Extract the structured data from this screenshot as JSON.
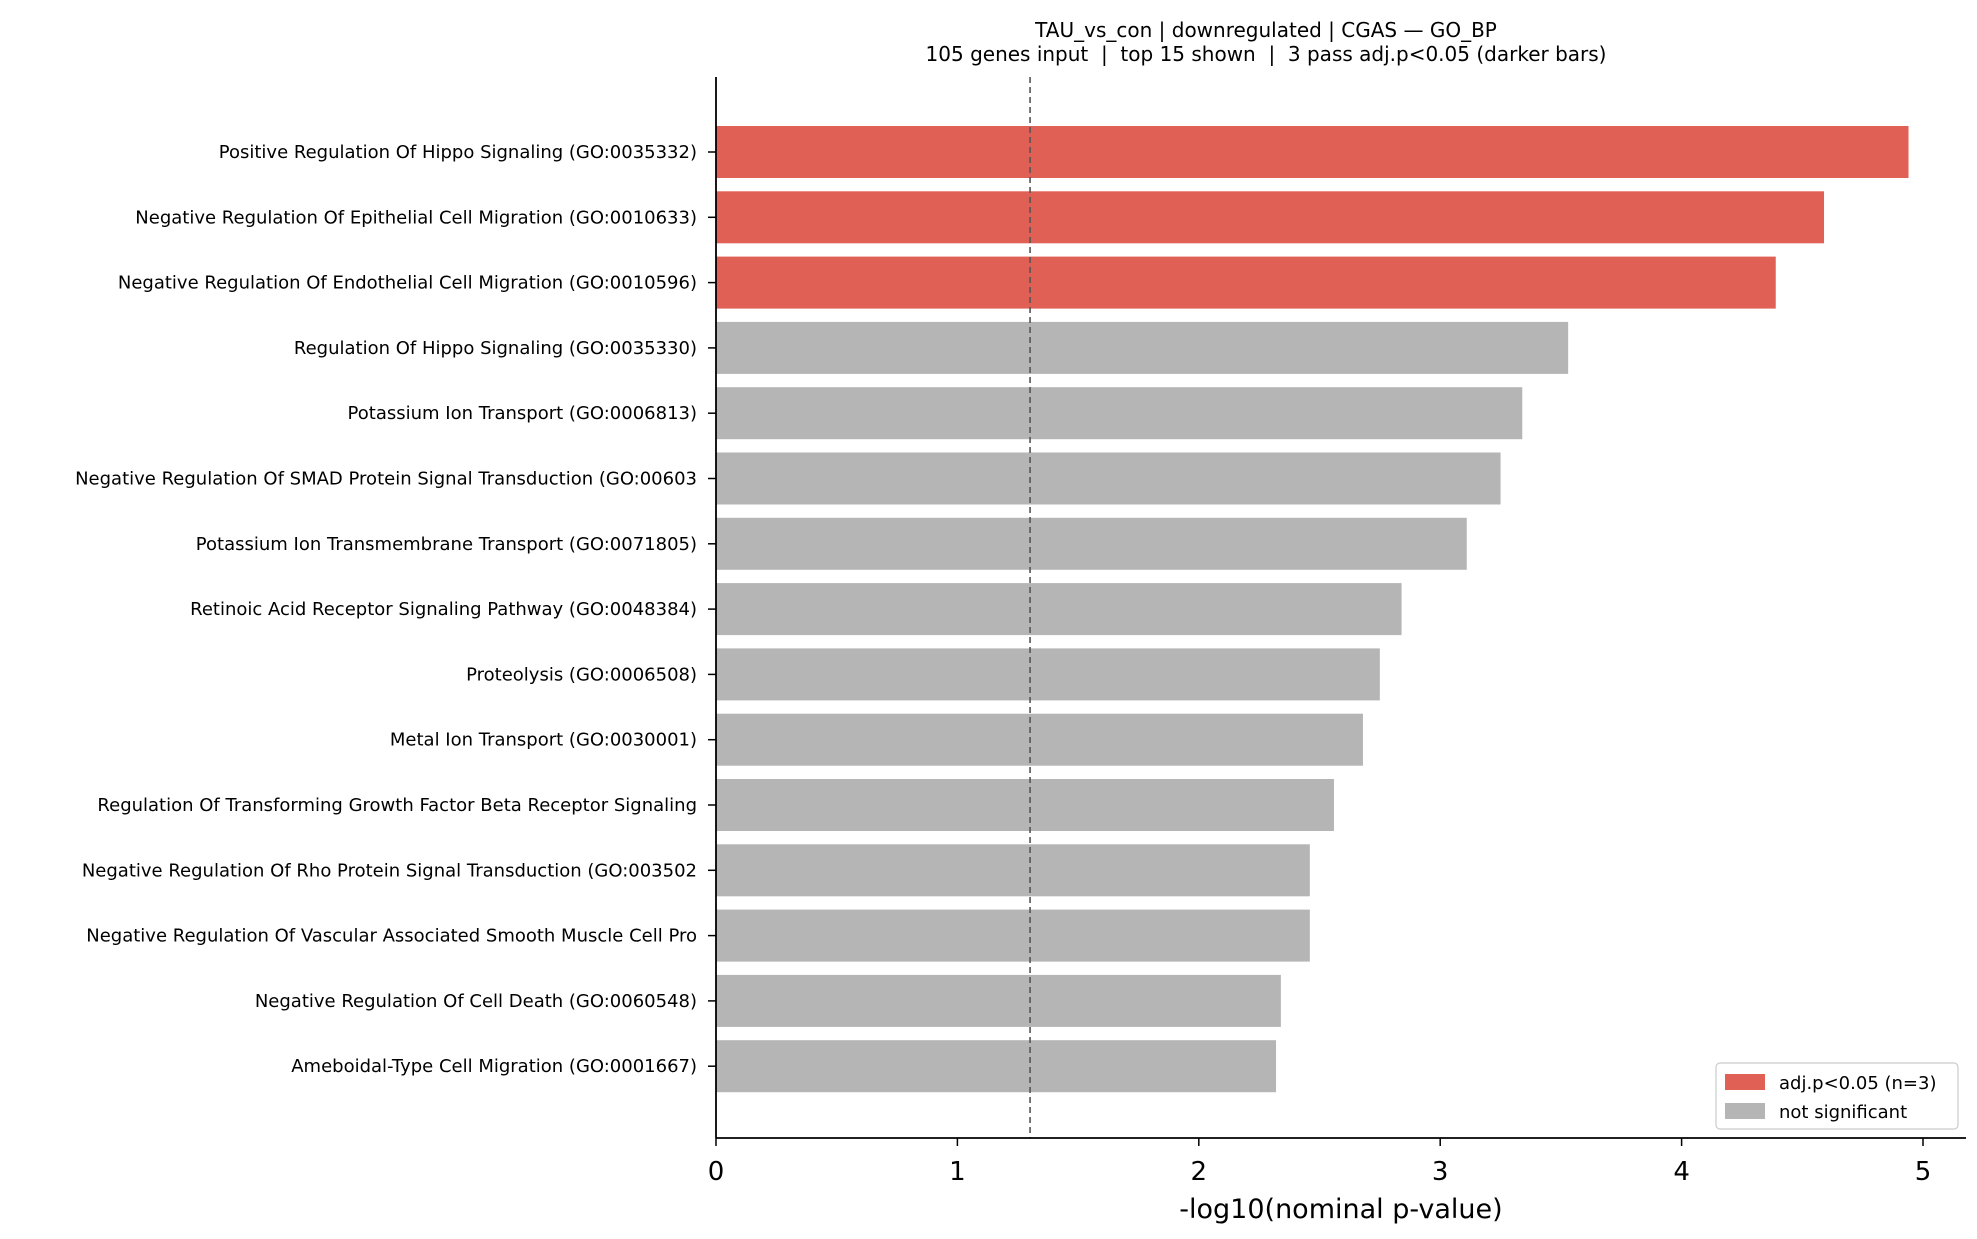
{
  "chart_data": {
    "type": "bar",
    "orientation": "horizontal",
    "title": "TAU_vs_con | downregulated | CGAS — GO_BP",
    "subtitle": "105 genes input  |  top 15 shown  |  3 pass adj.p<0.05 (darker bars)",
    "xlabel": "-log10(nominal p-value)",
    "ylabel": "",
    "xlim": [
      0,
      5.2
    ],
    "xticks": [
      0,
      1,
      2,
      3,
      4,
      5
    ],
    "threshold_line": 1.301,
    "grid": false,
    "legend_position": "bottom-right",
    "colors": {
      "significant": "#e06055",
      "not_significant": "#b5b5b5"
    },
    "categories": [
      "Positive Regulation Of Hippo Signaling (GO:0035332)",
      "Negative Regulation Of Epithelial Cell Migration (GO:0010633)",
      "Negative Regulation Of Endothelial Cell Migration (GO:0010596)",
      "Regulation Of Hippo Signaling (GO:0035330)",
      "Potassium Ion Transport (GO:0006813)",
      "Negative Regulation Of SMAD Protein Signal Transduction (GO:00603",
      "Potassium Ion Transmembrane Transport (GO:0071805)",
      "Retinoic Acid Receptor Signaling Pathway (GO:0048384)",
      "Proteolysis (GO:0006508)",
      "Metal Ion Transport (GO:0030001)",
      "Regulation Of Transforming Growth Factor Beta Receptor Signaling ",
      "Negative Regulation Of Rho Protein Signal Transduction (GO:003502",
      "Negative Regulation Of Vascular Associated Smooth Muscle Cell Pro",
      "Negative Regulation Of Cell Death (GO:0060548)",
      "Ameboidal-Type Cell Migration (GO:0001667)"
    ],
    "values": [
      4.94,
      4.59,
      4.39,
      3.53,
      3.34,
      3.25,
      3.11,
      2.84,
      2.75,
      2.68,
      2.56,
      2.46,
      2.46,
      2.34,
      2.32
    ],
    "significant": [
      true,
      true,
      true,
      false,
      false,
      false,
      false,
      false,
      false,
      false,
      false,
      false,
      false,
      false,
      false
    ],
    "legend": [
      {
        "label": "adj.p<0.05 (n=3)",
        "key": "significant"
      },
      {
        "label": "not significant",
        "key": "not_significant"
      }
    ]
  }
}
